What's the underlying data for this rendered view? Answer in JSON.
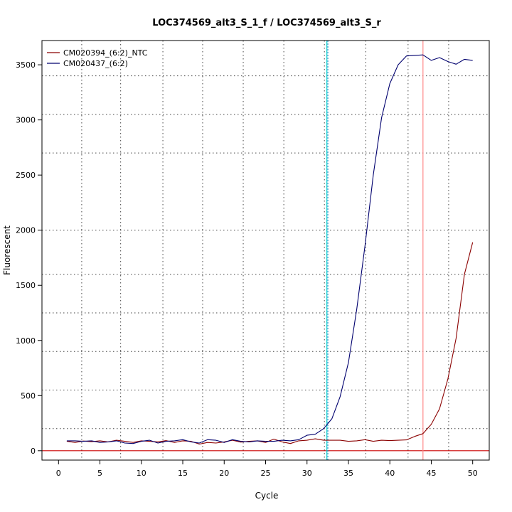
{
  "chart_data": {
    "type": "line",
    "title": "LOC374569_alt3_S_1_f / LOC374569_alt3_S_r",
    "xlabel": "Cycle",
    "ylabel": "Fluorescent",
    "xlim": [
      -2,
      52
    ],
    "ylim": [
      -85,
      3720
    ],
    "x_ticks": [
      "0",
      "5",
      "10",
      "15",
      "20",
      "25",
      "30",
      "35",
      "40",
      "45",
      "50"
    ],
    "y_ticks": [
      "0",
      "500",
      "1000",
      "1500",
      "2000",
      "2500",
      "3000",
      "3500"
    ],
    "grid": true,
    "grid_x": [
      2.8,
      7.5,
      12.6,
      17.4,
      22.3,
      27.2,
      32.1,
      37.1,
      42.2,
      47.1
    ],
    "grid_y": [
      200,
      550,
      900,
      1250,
      1600,
      2000,
      2700,
      3050,
      3400
    ],
    "legend_position": "top-left",
    "threshold_cycle_line": {
      "x": 32.4,
      "color": "#00CCCC"
    },
    "baseline_line": {
      "y": 0,
      "color": "#CC0000"
    },
    "vertical_marker": {
      "x": 44.0,
      "color": "#FF8888"
    },
    "series": [
      {
        "name": "CM020394_(6:2)_NTC",
        "color": "#8B0000",
        "x": [
          1,
          2,
          3,
          4,
          5,
          6,
          7,
          8,
          9,
          10,
          11,
          12,
          13,
          14,
          15,
          16,
          17,
          18,
          19,
          20,
          21,
          22,
          23,
          24,
          25,
          26,
          27,
          28,
          29,
          30,
          31,
          32,
          33,
          34,
          35,
          36,
          37,
          38,
          39,
          40,
          41,
          42,
          43,
          44,
          45,
          46,
          47,
          48,
          49,
          50
        ],
        "values": [
          85,
          75,
          88,
          82,
          90,
          80,
          95,
          85,
          75,
          90,
          85,
          80,
          92,
          75,
          90,
          85,
          60,
          75,
          70,
          80,
          95,
          78,
          85,
          90,
          75,
          105,
          80,
          65,
          90,
          95,
          108,
          95,
          95,
          95,
          85,
          90,
          100,
          85,
          95,
          92,
          95,
          98,
          130,
          155,
          240,
          380,
          650,
          1020,
          1600,
          1890
        ]
      },
      {
        "name": "CM020437_(6:2)",
        "color": "#00006E",
        "x": [
          1,
          2,
          3,
          4,
          5,
          6,
          7,
          8,
          9,
          10,
          11,
          12,
          13,
          14,
          15,
          16,
          17,
          18,
          19,
          20,
          21,
          22,
          23,
          24,
          25,
          26,
          27,
          28,
          29,
          30,
          31,
          32,
          33,
          34,
          35,
          36,
          37,
          38,
          39,
          40,
          41,
          42,
          43,
          44,
          45,
          46,
          47,
          48,
          49,
          50
        ],
        "values": [
          90,
          90,
          85,
          90,
          75,
          80,
          90,
          70,
          65,
          85,
          95,
          70,
          85,
          90,
          100,
          80,
          70,
          100,
          95,
          75,
          100,
          85,
          80,
          90,
          85,
          85,
          95,
          90,
          100,
          140,
          150,
          200,
          290,
          490,
          800,
          1280,
          1860,
          2500,
          3020,
          3330,
          3500,
          3580,
          3585,
          3590,
          3540,
          3565,
          3530,
          3505,
          3550,
          3540
        ]
      }
    ]
  }
}
